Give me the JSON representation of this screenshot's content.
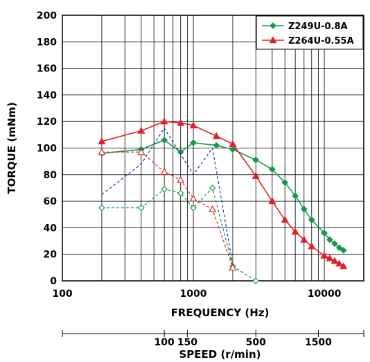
{
  "chart_data": {
    "type": "line",
    "xscale": "log",
    "xlabel": "FREQUENCY (Hz)",
    "ylabel": "TORQUE (mNm)",
    "secondary_xlabel": "SPEED (r/min)",
    "xlim": [
      100,
      20000
    ],
    "ylim": [
      0,
      200
    ],
    "xticks": [
      100,
      1000,
      10000
    ],
    "xtick_labels": [
      "100",
      "1000",
      "10000"
    ],
    "yticks": [
      0,
      20,
      40,
      60,
      80,
      100,
      120,
      140,
      160,
      180,
      200
    ],
    "ytick_labels": [
      "0",
      "20",
      "40",
      "60",
      "80",
      "100",
      "120",
      "140",
      "160",
      "180",
      "200"
    ],
    "speed_ticks": [
      {
        "freq": 600,
        "label": "100"
      },
      {
        "freq": 900,
        "label": "150"
      },
      {
        "freq": 3000,
        "label": "500"
      },
      {
        "freq": 9000,
        "label": "1500"
      }
    ],
    "grid": true,
    "legend_position": "top-right",
    "series": [
      {
        "name": "Z249U-0.8A",
        "color": "#129a4a",
        "marker": "diamond",
        "style": "solid",
        "x": [
          200,
          400,
          600,
          800,
          1000,
          1500,
          2000,
          3000,
          4000,
          5000,
          6000,
          7000,
          8000,
          10000,
          11000,
          12000,
          13000,
          14000
        ],
        "y": [
          96,
          99,
          106,
          97,
          104,
          102,
          99,
          91,
          84,
          74,
          64,
          54,
          46,
          36,
          31,
          28,
          25,
          23
        ]
      },
      {
        "name": "Z264U-0.55A",
        "color": "#e0202a",
        "marker": "triangle",
        "style": "solid",
        "x": [
          200,
          400,
          600,
          800,
          1000,
          1500,
          2000,
          3000,
          4000,
          5000,
          6000,
          7000,
          8000,
          10000,
          11000,
          12000,
          13000,
          14000
        ],
        "y": [
          105,
          113,
          120,
          119,
          117,
          109,
          103,
          79,
          60,
          46,
          37,
          31,
          26,
          19,
          17,
          15,
          13,
          11
        ]
      },
      {
        "color": "#1f3aa0",
        "marker": "none",
        "style": "dashed",
        "x": [
          200,
          400,
          600,
          1000,
          1400,
          2000
        ],
        "y": [
          65,
          88,
          115,
          80,
          100,
          12
        ]
      },
      {
        "color": "#129a4a",
        "marker": "diamond-open",
        "style": "dashed",
        "x": [
          200,
          400,
          600,
          800,
          1000,
          1400,
          2000,
          3000
        ],
        "y": [
          55,
          55,
          69,
          66,
          55,
          70,
          11,
          0
        ]
      },
      {
        "color": "#e0202a",
        "marker": "triangle-open",
        "style": "dashed",
        "x": [
          200,
          400,
          600,
          800,
          1000,
          1400,
          2000
        ],
        "y": [
          97,
          97,
          82,
          76,
          62,
          54,
          10
        ]
      }
    ]
  }
}
